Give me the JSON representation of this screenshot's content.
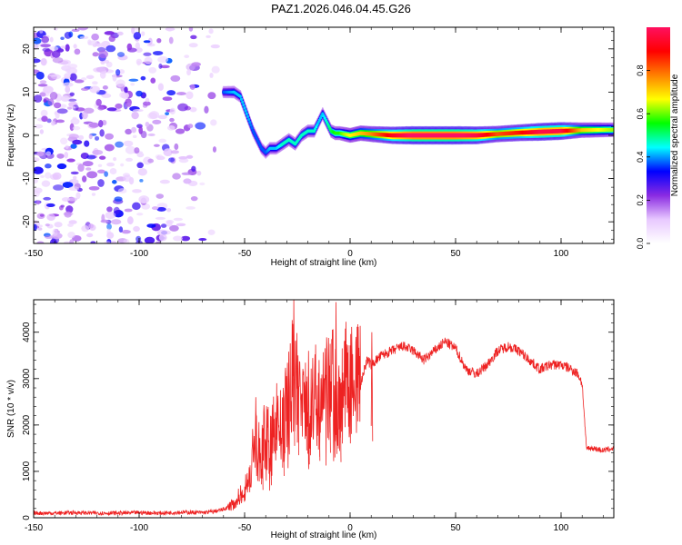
{
  "title": "PAZ1.2026.046.04.45.G26",
  "chart_data": [
    {
      "type": "heatmap",
      "title": "PAZ1.2026.046.04.45.G26",
      "xlabel": "Height of straight line (km)",
      "ylabel": "Frequency (Hz)",
      "xlim": [
        -150,
        125
      ],
      "ylim": [
        -25,
        25
      ],
      "xticks": [
        -150,
        -100,
        -50,
        0,
        50,
        100
      ],
      "yticks": [
        -20,
        -10,
        0,
        10,
        20
      ],
      "ridge": {
        "x": [
          -60,
          -55,
          -52,
          -49,
          -46,
          -44,
          -42,
          -40,
          -38,
          -35,
          -32,
          -29,
          -26,
          -23,
          -20,
          -17,
          -15,
          -13,
          -11,
          -9,
          -7,
          -5,
          -3,
          0,
          5,
          10,
          20,
          30,
          40,
          50,
          60,
          70,
          80,
          90,
          100,
          110,
          125
        ],
        "y": [
          10,
          10,
          9,
          5,
          1,
          -1,
          -3,
          -4,
          -3,
          -3,
          -2,
          -1,
          -2,
          0,
          1,
          1,
          3,
          5,
          3,
          1,
          0.5,
          0.5,
          0.3,
          0,
          0.5,
          0.3,
          0,
          0,
          0,
          0,
          0,
          0.3,
          0.6,
          0.8,
          1,
          1.2,
          1.3
        ],
        "amplitude": [
          0.25,
          0.3,
          0.3,
          0.3,
          0.25,
          0.25,
          0.25,
          0.25,
          0.3,
          0.3,
          0.35,
          0.35,
          0.35,
          0.35,
          0.35,
          0.35,
          0.3,
          0.3,
          0.35,
          0.4,
          0.45,
          0.45,
          0.5,
          0.55,
          0.6,
          0.65,
          0.8,
          0.9,
          0.9,
          0.9,
          0.85,
          0.7,
          0.75,
          0.85,
          0.85,
          0.6,
          0.5
        ]
      },
      "noise_region": {
        "x_range": [
          -150,
          -62
        ],
        "y_range": [
          -25,
          25
        ],
        "amplitude": [
          0.0,
          0.3
        ]
      },
      "colorbar": {
        "label": "Normalized spectral amplitude",
        "ticks": [
          "0.0",
          "0.2",
          "0.4",
          "0.6",
          "0.8"
        ],
        "range": [
          0,
          1
        ],
        "colors": [
          "#ffffff",
          "#e8c8ff",
          "#8a2be2",
          "#0000ff",
          "#00ffff",
          "#00ff00",
          "#ffff00",
          "#ff8000",
          "#ff0000",
          "#ff1060"
        ]
      }
    },
    {
      "type": "line",
      "xlabel": "Height of straight line (km)",
      "ylabel": "SNR (10 * v/v)",
      "xlim": [
        -150,
        125
      ],
      "ylim": [
        0,
        4700
      ],
      "xticks": [
        -150,
        -100,
        -50,
        0,
        50,
        100
      ],
      "yticks": [
        0,
        1000,
        2000,
        3000,
        4000
      ],
      "series": [
        {
          "name": "SNR",
          "color": "#ee2222",
          "x": [
            -150,
            -140,
            -130,
            -120,
            -110,
            -100,
            -90,
            -80,
            -70,
            -65,
            -60,
            -55,
            -52,
            -50,
            -47,
            -45,
            -42,
            -40,
            -38,
            -35,
            -32,
            -30,
            -28,
            -26,
            -25,
            -23,
            -20,
            -18,
            -16,
            -14,
            -12,
            -10,
            -8,
            -6,
            -5,
            -3,
            0,
            3,
            5,
            8,
            10,
            15,
            20,
            25,
            30,
            35,
            40,
            45,
            50,
            55,
            60,
            65,
            70,
            75,
            80,
            85,
            90,
            95,
            100,
            105,
            108,
            110,
            112,
            115,
            120,
            125
          ],
          "y": [
            100,
            100,
            110,
            100,
            100,
            110,
            100,
            120,
            110,
            130,
            180,
            300,
            500,
            600,
            1000,
            1800,
            1200,
            2000,
            1400,
            2200,
            1800,
            2500,
            2900,
            3300,
            2700,
            2600,
            2300,
            2500,
            2600,
            2300,
            2600,
            2800,
            3000,
            2500,
            2400,
            2900,
            3000,
            3100,
            2900,
            3400,
            3300,
            3500,
            3600,
            3700,
            3600,
            3400,
            3600,
            3800,
            3650,
            3200,
            3100,
            3300,
            3600,
            3700,
            3600,
            3400,
            3200,
            3300,
            3300,
            3200,
            3100,
            2900,
            1500,
            1500,
            1450,
            1500
          ],
          "spikes": [
            {
              "x": -45,
              "y": 2600
            },
            {
              "x": -42,
              "y": 2000
            },
            {
              "x": -38,
              "y": 2200
            },
            {
              "x": -32,
              "y": 2800
            },
            {
              "x": -27,
              "y": 4700
            },
            {
              "x": -25,
              "y": 3500
            },
            {
              "x": -20,
              "y": 3600
            },
            {
              "x": -15,
              "y": 3400
            },
            {
              "x": -10,
              "y": 3200
            },
            {
              "x": -7,
              "y": 4650
            },
            {
              "x": -5,
              "y": 3000
            },
            {
              "x": 10,
              "y": 4000
            }
          ]
        }
      ]
    }
  ]
}
